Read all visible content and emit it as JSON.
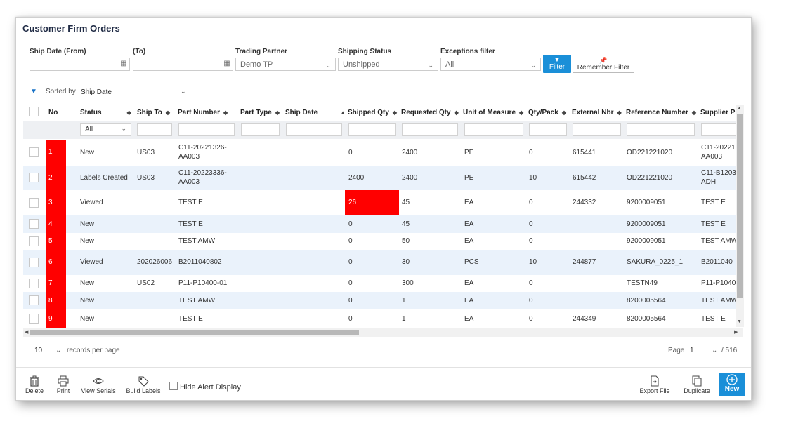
{
  "page": {
    "title": "Customer Firm Orders"
  },
  "filters": {
    "ship_date_from_label": "Ship Date (From)",
    "ship_date_from_value": "",
    "ship_date_to_label": "(To)",
    "ship_date_to_value": "",
    "trading_partner_label": "Trading Partner",
    "trading_partner_value": "Demo TP",
    "shipping_status_label": "Shipping Status",
    "shipping_status_value": "Unshipped",
    "exceptions_label": "Exceptions filter",
    "exceptions_value": "All",
    "filter_button": "Filter",
    "remember_button": "Remember Filter"
  },
  "sort": {
    "label": "Sorted by",
    "value": "Ship Date"
  },
  "columns": [
    "No",
    "Status",
    "Ship To",
    "Part Number",
    "Part Type",
    "Ship Date",
    "Shipped Qty",
    "Requested Qty",
    "Unit of Measure",
    "Qty/Pack",
    "External Nbr",
    "Reference Number",
    "Supplier P"
  ],
  "status_filter_value": "All",
  "rows": [
    {
      "no": "1",
      "status": "New",
      "ship_to": "US03",
      "part_number": "C11-20221326-",
      "part_number_2": "AA003",
      "shipped_qty": "0",
      "requested_qty": "2400",
      "uom": "PE",
      "qty_pack": "0",
      "external_nbr": "615441",
      "reference_number": "OD221221020",
      "supplier_part": "C11-20221",
      "supplier_part_2": "AA003"
    },
    {
      "no": "2",
      "status": "Labels Created",
      "ship_to": "US03",
      "part_number": "C11-20223336-",
      "part_number_2": "AA003",
      "shipped_qty": "2400",
      "requested_qty": "2400",
      "uom": "PE",
      "qty_pack": "10",
      "external_nbr": "615442",
      "reference_number": "OD221221020",
      "supplier_part": "C11-B1203",
      "supplier_part_2": "ADH"
    },
    {
      "no": "3",
      "status": "Viewed",
      "ship_to": "",
      "part_number": "TEST E",
      "shipped_qty": "26",
      "requested_qty": "45",
      "uom": "EA",
      "qty_pack": "0",
      "external_nbr": "244332",
      "reference_number": "9200009051",
      "supplier_part": "TEST E"
    },
    {
      "no": "4",
      "status": "New",
      "ship_to": "",
      "part_number": "TEST E",
      "shipped_qty": "0",
      "requested_qty": "45",
      "uom": "EA",
      "qty_pack": "0",
      "external_nbr": "",
      "reference_number": "9200009051",
      "supplier_part": "TEST E"
    },
    {
      "no": "5",
      "status": "New",
      "ship_to": "",
      "part_number": "TEST AMW",
      "shipped_qty": "0",
      "requested_qty": "50",
      "uom": "EA",
      "qty_pack": "0",
      "external_nbr": "",
      "reference_number": "9200009051",
      "supplier_part": "TEST AMW"
    },
    {
      "no": "6",
      "status": "Viewed",
      "ship_to": "202026006",
      "part_number": "B2011040802",
      "shipped_qty": "0",
      "requested_qty": "30",
      "uom": "PCS",
      "qty_pack": "10",
      "external_nbr": "244877",
      "reference_number": "SAKURA_0225_1",
      "supplier_part": "B2011040"
    },
    {
      "no": "7",
      "status": "New",
      "ship_to": "US02",
      "part_number": "P11-P10400-01",
      "shipped_qty": "0",
      "requested_qty": "300",
      "uom": "EA",
      "qty_pack": "0",
      "external_nbr": "",
      "reference_number": "TESTN49",
      "supplier_part": "P11-P1040"
    },
    {
      "no": "8",
      "status": "New",
      "ship_to": "",
      "part_number": "TEST AMW",
      "shipped_qty": "0",
      "requested_qty": "1",
      "uom": "EA",
      "qty_pack": "0",
      "external_nbr": "",
      "reference_number": "8200005564",
      "supplier_part": "TEST AMW"
    },
    {
      "no": "9",
      "status": "New",
      "ship_to": "",
      "part_number": "TEST E",
      "shipped_qty": "0",
      "requested_qty": "1",
      "uom": "EA",
      "qty_pack": "0",
      "external_nbr": "244349",
      "reference_number": "8200005564",
      "supplier_part": "TEST E"
    }
  ],
  "pagination": {
    "per_page": "10",
    "per_page_label": "records per page",
    "page_label": "Page",
    "page_value": "1",
    "total_pages": "/ 516"
  },
  "toolbar": {
    "delete": "Delete",
    "print": "Print",
    "view_serials": "View Serials",
    "build_labels": "Build Labels",
    "hide_alert": "Hide Alert Display",
    "export_file": "Export File",
    "duplicate": "Duplicate",
    "new": "New"
  },
  "colors": {
    "accent": "#1a8fd8",
    "alert": "#ff0000",
    "alt_row": "#eaf2fb"
  }
}
